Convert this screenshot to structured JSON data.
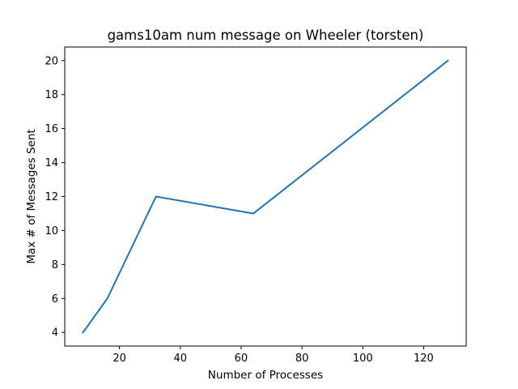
{
  "chart_data": {
    "type": "line",
    "title": "gams10am num message on Wheeler (torsten)",
    "xlabel": "Number of Processes",
    "ylabel": "Max # of Messages Sent",
    "x": [
      8,
      16,
      32,
      64,
      128
    ],
    "series": [
      {
        "values": [
          4,
          6,
          12,
          11,
          20
        ],
        "color": "#1f77b4"
      }
    ],
    "xlim": [
      2,
      134
    ],
    "ylim": [
      3.2,
      20.8
    ],
    "xticks": [
      20,
      40,
      60,
      80,
      100,
      120
    ],
    "yticks": [
      4,
      6,
      8,
      10,
      12,
      14,
      16,
      18,
      20
    ],
    "grid": false,
    "legend": "none"
  }
}
